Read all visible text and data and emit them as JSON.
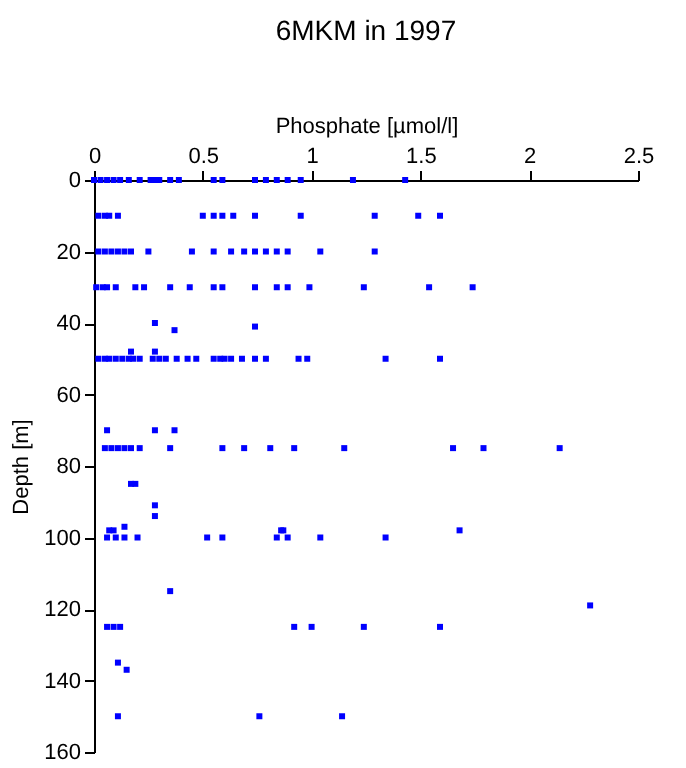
{
  "chart_data": {
    "type": "scatter",
    "title": "6MKM in 1997",
    "xlabel": "Phosphate [µmol/l]",
    "ylabel": "Depth [m]",
    "xlim": [
      0,
      2.5
    ],
    "xticks": [
      0,
      0.5,
      1,
      1.5,
      2,
      2.5
    ],
    "ylim": [
      160,
      0
    ],
    "yticks": [
      0,
      20,
      40,
      60,
      80,
      100,
      120,
      140,
      160
    ],
    "grid": false,
    "marker": "square",
    "series": [
      {
        "color": "#0000ff",
        "x": [
          0,
          0.03,
          0.06,
          0.09,
          0.12,
          0.16,
          0.21,
          0.26,
          0.28,
          0.3,
          0.35,
          0.39,
          0.55,
          0.59,
          0.74,
          0.79,
          0.84,
          0.89,
          0.95,
          1.19,
          1.43,
          0.02,
          0.05,
          0.07,
          0.11,
          0.5,
          0.55,
          0.59,
          0.64,
          0.74,
          0.95,
          1.29,
          1.49,
          1.59,
          0.02,
          0.05,
          0.08,
          0.11,
          0.14,
          0.17,
          0.25,
          0.45,
          0.55,
          0.63,
          0.69,
          0.74,
          0.79,
          0.84,
          0.89,
          1.04,
          1.29,
          0.01,
          0.04,
          0.06,
          0.1,
          0.19,
          0.23,
          0.35,
          0.44,
          0.55,
          0.59,
          0.74,
          0.84,
          0.89,
          0.99,
          1.24,
          1.54,
          1.74,
          0.28,
          0.37,
          0.74,
          0.02,
          0.05,
          0.07,
          0.1,
          0.13,
          0.16,
          0.18,
          0.21,
          0.27,
          0.3,
          0.33,
          0.38,
          0.43,
          0.47,
          0.55,
          0.58,
          0.6,
          0.63,
          0.68,
          0.74,
          0.79,
          0.94,
          0.98,
          1.34,
          1.59,
          0.17,
          0.28,
          0.06,
          0.28,
          0.37,
          0.05,
          0.08,
          0.11,
          0.14,
          0.17,
          0.21,
          0.35,
          0.59,
          0.69,
          0.81,
          0.92,
          1.15,
          1.65,
          1.79,
          2.14,
          0.17,
          0.19,
          0.28,
          0.28,
          0.14,
          0.07,
          0.09,
          0.86,
          0.87,
          1.68,
          0.06,
          0.1,
          0.14,
          0.2,
          0.52,
          0.59,
          0.84,
          0.89,
          1.04,
          1.34,
          0.35,
          2.28,
          0.06,
          0.09,
          0.12,
          0.92,
          1.0,
          1.24,
          1.59,
          0.11,
          0.15,
          0.11,
          0.76,
          1.14
        ],
        "values": [
          0,
          0,
          0,
          0,
          0,
          0,
          0,
          0,
          0,
          0,
          0,
          0,
          0,
          0,
          0,
          0,
          0,
          0,
          0,
          0,
          0,
          10,
          10,
          10,
          10,
          10,
          10,
          10,
          10,
          10,
          10,
          10,
          10,
          10,
          20,
          20,
          20,
          20,
          20,
          20,
          20,
          20,
          20,
          20,
          20,
          20,
          20,
          20,
          20,
          20,
          20,
          30,
          30,
          30,
          30,
          30,
          30,
          30,
          30,
          30,
          30,
          30,
          30,
          30,
          30,
          30,
          30,
          30,
          40,
          42,
          41,
          50,
          50,
          50,
          50,
          50,
          50,
          50,
          50,
          50,
          50,
          50,
          50,
          50,
          50,
          50,
          50,
          50,
          50,
          50,
          50,
          50,
          50,
          50,
          50,
          50,
          48,
          48,
          70,
          70,
          70,
          75,
          75,
          75,
          75,
          75,
          75,
          75,
          75,
          75,
          75,
          75,
          75,
          75,
          75,
          75,
          85,
          85,
          91,
          94,
          97,
          98,
          98,
          98,
          98,
          98,
          100,
          100,
          100,
          100,
          100,
          100,
          100,
          100,
          100,
          100,
          115,
          119,
          125,
          125,
          125,
          125,
          125,
          125,
          125,
          135,
          137,
          150,
          150,
          150
        ]
      }
    ]
  }
}
